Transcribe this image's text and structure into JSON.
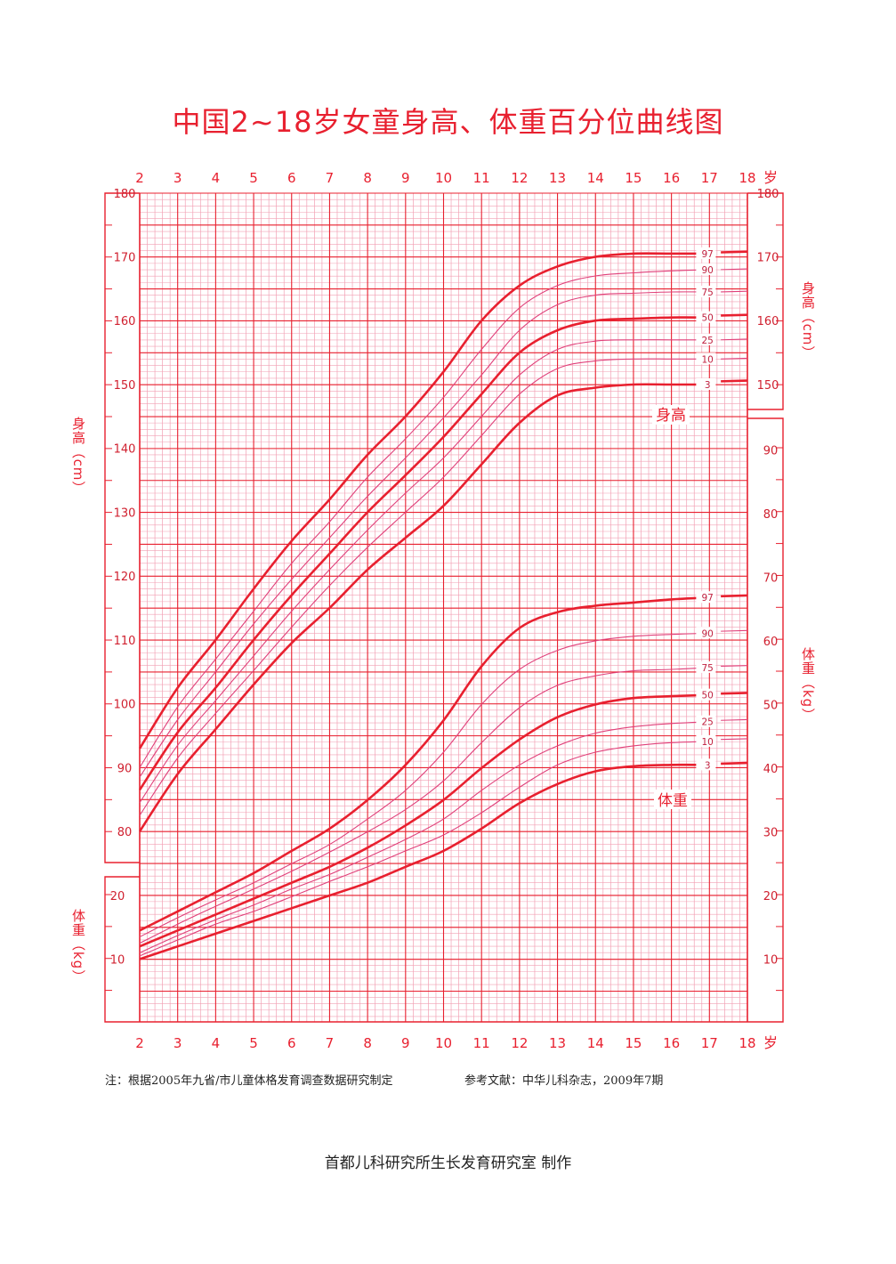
{
  "title": "中国2~18岁女童身高、体重百分位曲线图",
  "note": "注：根据2005年九省/市儿童体格发育调查数据研究制定",
  "reference": "参考文献：中华儿科杂志，2009年7期",
  "credit": "首都儿科研究所生长发育研究室  制作",
  "colors": {
    "grid_major": "#e8202f",
    "grid_minor": "#f2a0b4",
    "curve_main": "#e8202f",
    "curve_thin": "#e0407a"
  },
  "chart_data": {
    "type": "line",
    "x_ticks": [
      "2",
      "3",
      "4",
      "5",
      "6",
      "7",
      "8",
      "9",
      "10",
      "11",
      "12",
      "13",
      "14",
      "15",
      "16",
      "17",
      "18"
    ],
    "x_unit": "岁",
    "xlim": [
      2,
      18
    ],
    "height": {
      "axis_label": "身高（cm）",
      "ticks": [
        "80",
        "90",
        "100",
        "110",
        "120",
        "130",
        "140",
        "150",
        "160",
        "170",
        "180"
      ],
      "ylim": [
        80,
        180
      ],
      "label": "身高",
      "ages": [
        2,
        3,
        4,
        5,
        6,
        7,
        8,
        9,
        10,
        11,
        12,
        13,
        14,
        15,
        16,
        17,
        18
      ],
      "series": [
        {
          "name": "97",
          "bold": true,
          "values": [
            93,
            102.5,
            110,
            118,
            125.5,
            132,
            139,
            145,
            152,
            160,
            165.5,
            168.5,
            170,
            170.5,
            170.5,
            170.5,
            170.7
          ]
        },
        {
          "name": "90",
          "bold": false,
          "values": [
            90,
            99.5,
            107,
            114.5,
            122,
            128.5,
            135.5,
            141.5,
            148,
            155.5,
            162,
            165.5,
            167,
            167.5,
            167.8,
            168,
            168
          ]
        },
        {
          "name": "75",
          "bold": false,
          "values": [
            88.5,
            97.5,
            105,
            112.5,
            119.5,
            126,
            132.5,
            138.5,
            144.8,
            151.5,
            158.5,
            162.5,
            164,
            164.3,
            164.5,
            164.5,
            164.5
          ]
        },
        {
          "name": "50",
          "bold": true,
          "values": [
            86.5,
            95.5,
            102.5,
            110,
            117,
            123.5,
            130,
            135.8,
            141.8,
            148.5,
            155,
            158.5,
            160,
            160.3,
            160.5,
            160.5,
            160.8
          ]
        },
        {
          "name": "25",
          "bold": false,
          "values": [
            84.5,
            93.5,
            100.5,
            107.5,
            114.5,
            121,
            127.2,
            133,
            138.5,
            145,
            151.5,
            155.5,
            156.8,
            157,
            157,
            157,
            157
          ]
        },
        {
          "name": "10",
          "bold": false,
          "values": [
            82.5,
            91.5,
            98.5,
            105.2,
            112,
            118.5,
            124.5,
            130,
            135.5,
            142,
            148.5,
            152.5,
            153.7,
            154,
            154,
            154,
            154
          ]
        },
        {
          "name": "3",
          "bold": true,
          "values": [
            80,
            89,
            96,
            103,
            109.5,
            115,
            121,
            126,
            131,
            137.5,
            144,
            148.3,
            149.5,
            150,
            150,
            150,
            150.5
          ]
        }
      ]
    },
    "weight": {
      "axis_label": "体重（kg）",
      "ticks_left": [
        "10",
        "20"
      ],
      "ticks_right": [
        "10",
        "20",
        "30",
        "40",
        "50",
        "60",
        "70",
        "80",
        "90"
      ],
      "ylim": [
        5,
        95
      ],
      "label": "体重",
      "ages": [
        2,
        3,
        4,
        5,
        6,
        7,
        8,
        9,
        10,
        11,
        12,
        13,
        14,
        15,
        16,
        17,
        18
      ],
      "series": [
        {
          "name": "97",
          "bold": true,
          "values": [
            14.5,
            17.5,
            20.5,
            23.5,
            27,
            30.5,
            35,
            40.5,
            47.5,
            56,
            62,
            64.5,
            65.5,
            66,
            66.5,
            66.8,
            67
          ]
        },
        {
          "name": "90",
          "bold": false,
          "values": [
            13.5,
            16.5,
            19.3,
            22,
            25,
            28,
            32,
            36.5,
            42.5,
            50,
            55.5,
            58.5,
            60,
            60.7,
            61,
            61.2,
            61.5
          ]
        },
        {
          "name": "75",
          "bold": false,
          "values": [
            12.5,
            15.5,
            18.3,
            21,
            23.8,
            26.8,
            30,
            33.5,
            38,
            44,
            49.5,
            53,
            54.5,
            55.3,
            55.5,
            55.8,
            56
          ]
        },
        {
          "name": "50",
          "bold": true,
          "values": [
            12,
            14.5,
            17,
            19.5,
            22,
            24.5,
            27.5,
            31,
            35,
            40,
            44.5,
            48,
            50,
            51,
            51.3,
            51.5,
            51.7
          ]
        },
        {
          "name": "25",
          "bold": false,
          "values": [
            11,
            13.7,
            16.2,
            18.5,
            21,
            23.3,
            26,
            28.8,
            32,
            36.5,
            40.5,
            43.5,
            45.5,
            46.5,
            47,
            47.3,
            47.5
          ]
        },
        {
          "name": "10",
          "bold": false,
          "values": [
            10.5,
            13,
            15.5,
            17.5,
            19.8,
            22.2,
            24.5,
            27,
            29.5,
            33,
            37,
            40.5,
            42.5,
            43.5,
            44,
            44.2,
            44.5
          ]
        },
        {
          "name": "3",
          "bold": true,
          "values": [
            10,
            12,
            14,
            16,
            18,
            20,
            22,
            24.5,
            27,
            30.5,
            34.5,
            37.5,
            39.5,
            40.3,
            40.5,
            40.5,
            40.7
          ]
        }
      ]
    }
  }
}
